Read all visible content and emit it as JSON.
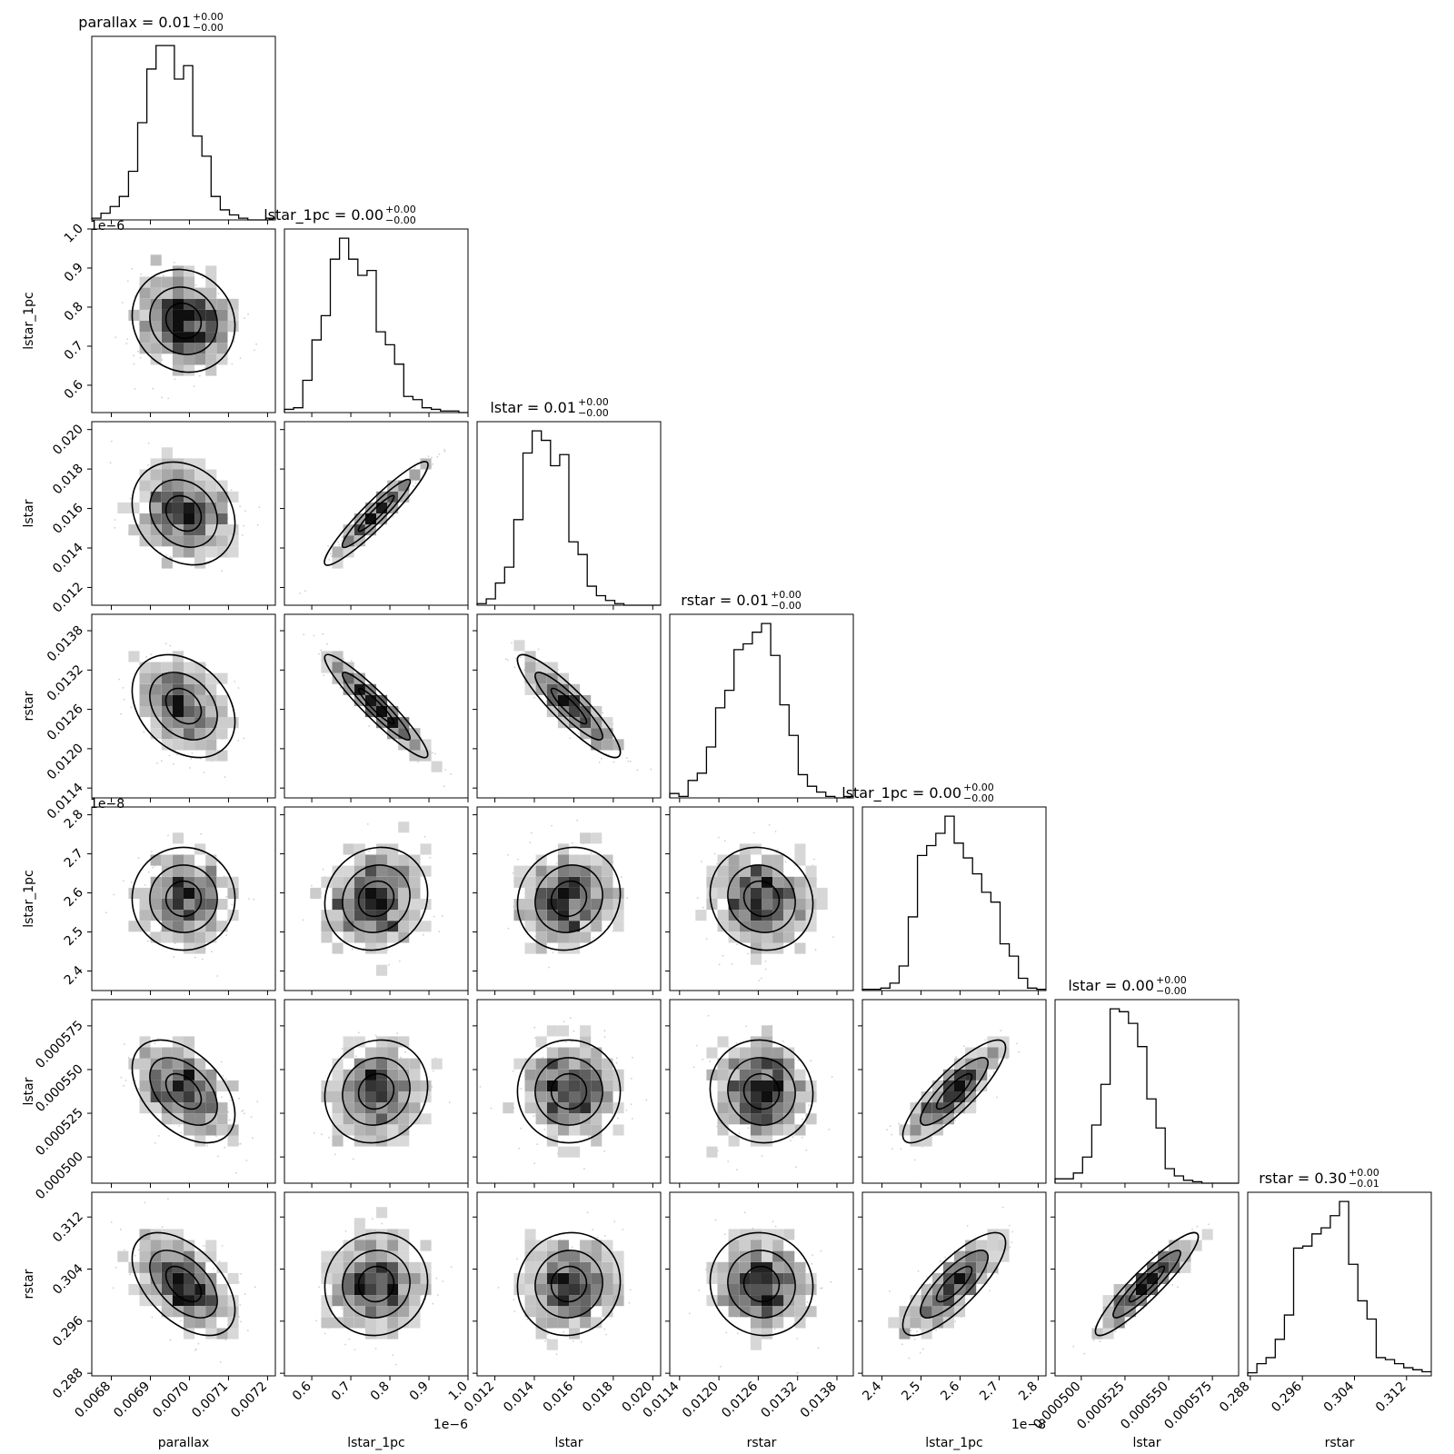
{
  "chart_data": {
    "type": "corner",
    "parameters": [
      "parallax",
      "lstar_1pc",
      "lstar",
      "rstar",
      "lstar_1pc",
      "lstar",
      "rstar"
    ],
    "axis_labels": [
      "parallax",
      "lstar_1pc",
      "lstar",
      "rstar",
      "lstar_1pc",
      "lstar",
      "rstar"
    ],
    "offsets": [
      "",
      "1e−6",
      "",
      "",
      "1e−8",
      "",
      ""
    ],
    "ranges": [
      [
        0.00675,
        0.00722
      ],
      [
        5.3e-07,
        1e-06
      ],
      [
        0.0111,
        0.0204
      ],
      [
        0.01125,
        0.01405
      ],
      [
        2.35e-08,
        2.82e-08
      ],
      [
        0.000485,
        0.00059
      ],
      [
        0.2876,
        0.3158
      ]
    ],
    "tick_values": [
      [
        0.0068,
        0.0069,
        0.007,
        0.0071,
        0.0072
      ],
      [
        6e-07,
        7e-07,
        8e-07,
        9e-07,
        1e-06
      ],
      [
        0.012,
        0.014,
        0.016,
        0.018,
        0.02
      ],
      [
        0.0114,
        0.012,
        0.0126,
        0.0132,
        0.0138
      ],
      [
        2.4e-08,
        2.5e-08,
        2.6e-08,
        2.7e-08,
        2.8e-08
      ],
      [
        0.0005,
        0.000525,
        0.00055,
        0.000575
      ],
      [
        0.288,
        0.296,
        0.304,
        0.312
      ]
    ],
    "tick_labels": [
      [
        "0.0068",
        "0.0069",
        "0.0070",
        "0.0071",
        "0.0072"
      ],
      [
        "0.6",
        "0.7",
        "0.8",
        "0.9",
        "1.0"
      ],
      [
        "0.012",
        "0.014",
        "0.016",
        "0.018",
        "0.020"
      ],
      [
        "0.0114",
        "0.0120",
        "0.0126",
        "0.0132",
        "0.0138"
      ],
      [
        "2.4",
        "2.5",
        "2.6",
        "2.7",
        "2.8"
      ],
      [
        "0.000500",
        "0.000525",
        "0.000550",
        "0.000575"
      ],
      [
        "0.288",
        "0.296",
        "0.304",
        "0.312"
      ]
    ],
    "titles": [
      {
        "name": "parallax",
        "value": "0.01",
        "plus": "+0.00",
        "minus": "−0.00"
      },
      {
        "name": "lstar_1pc",
        "value": "0.00",
        "plus": "+0.00",
        "minus": "−0.00"
      },
      {
        "name": "lstar",
        "value": "0.01",
        "plus": "+0.00",
        "minus": "−0.00"
      },
      {
        "name": "rstar",
        "value": "0.01",
        "plus": "+0.00",
        "minus": "−0.00"
      },
      {
        "name": "lstar_1pc",
        "value": "0.00",
        "plus": "+0.00",
        "minus": "−0.00"
      },
      {
        "name": "lstar",
        "value": "0.00",
        "plus": "+0.00",
        "minus": "−0.00"
      },
      {
        "name": "rstar",
        "value": "0.30",
        "plus": "+0.00",
        "minus": "−0.01"
      }
    ],
    "histograms": [
      {
        "bin_start": 0.00675,
        "bin_width": 2.35e-05,
        "counts": [
          1,
          4,
          8,
          14,
          29,
          58,
          90,
          104,
          104,
          84,
          92,
          50,
          38,
          14,
          6,
          3,
          1,
          0,
          0,
          1
        ]
      },
      {
        "bin_start": 5.3e-07,
        "bin_width": 2.35e-08,
        "counts": [
          2,
          3,
          20,
          45,
          60,
          95,
          108,
          95,
          85,
          88,
          50,
          42,
          30,
          10,
          8,
          3,
          2,
          1,
          1,
          0
        ]
      },
      {
        "bin_start": 0.0111,
        "bin_width": 0.000465,
        "counts": [
          1,
          4,
          14,
          24,
          54,
          96,
          110,
          104,
          88,
          95,
          40,
          32,
          12,
          6,
          3,
          1,
          0,
          0,
          0,
          0
        ]
      },
      {
        "bin_start": 0.01125,
        "bin_width": 0.00014,
        "counts": [
          3,
          1,
          12,
          17,
          35,
          62,
          74,
          102,
          106,
          114,
          120,
          98,
          64,
          43,
          16,
          8,
          4,
          1,
          0,
          1
        ]
      },
      {
        "bin_start": 2.35e-08,
        "bin_width": 2.35e-10,
        "counts": [
          1,
          1,
          2,
          6,
          20,
          60,
          110,
          118,
          128,
          142,
          120,
          108,
          95,
          80,
          72,
          38,
          28,
          10,
          2,
          1
        ]
      },
      {
        "bin_start": 0.000485,
        "bin_width": 5.25e-06,
        "counts": [
          3,
          3,
          7,
          18,
          40,
          68,
          120,
          118,
          110,
          94,
          58,
          38,
          10,
          5,
          2,
          1,
          0,
          0,
          0,
          0
        ]
      },
      {
        "bin_start": 0.2876,
        "bin_width": 0.00141,
        "counts": [
          3,
          12,
          18,
          36,
          60,
          126,
          128,
          140,
          146,
          158,
          172,
          110,
          74,
          56,
          18,
          16,
          12,
          8,
          6,
          4
        ]
      }
    ],
    "correlations": [
      {
        "pair": [
          1,
          0
        ],
        "rho": -0.1
      },
      {
        "pair": [
          2,
          0
        ],
        "rho": -0.2
      },
      {
        "pair": [
          2,
          1
        ],
        "rho": 0.97
      },
      {
        "pair": [
          3,
          0
        ],
        "rho": -0.3
      },
      {
        "pair": [
          3,
          1
        ],
        "rho": -0.95
      },
      {
        "pair": [
          3,
          2
        ],
        "rho": -0.9
      },
      {
        "pair": [
          4,
          0
        ],
        "rho": 0.0
      },
      {
        "pair": [
          4,
          1
        ],
        "rho": 0.1
      },
      {
        "pair": [
          4,
          2
        ],
        "rho": 0.1
      },
      {
        "pair": [
          4,
          3
        ],
        "rho": -0.1
      },
      {
        "pair": [
          5,
          0
        ],
        "rho": -0.45
      },
      {
        "pair": [
          5,
          1
        ],
        "rho": 0.1
      },
      {
        "pair": [
          5,
          2
        ],
        "rho": 0.0
      },
      {
        "pair": [
          5,
          3
        ],
        "rho": -0.05
      },
      {
        "pair": [
          5,
          4
        ],
        "rho": 0.85
      },
      {
        "pair": [
          6,
          0
        ],
        "rho": -0.5
      },
      {
        "pair": [
          6,
          1
        ],
        "rho": 0.05
      },
      {
        "pair": [
          6,
          2
        ],
        "rho": 0.05
      },
      {
        "pair": [
          6,
          3
        ],
        "rho": -0.05
      },
      {
        "pair": [
          6,
          4
        ],
        "rho": 0.8
      },
      {
        "pair": [
          6,
          5
        ],
        "rho": 0.92
      }
    ],
    "grid": false,
    "legend": "none"
  }
}
